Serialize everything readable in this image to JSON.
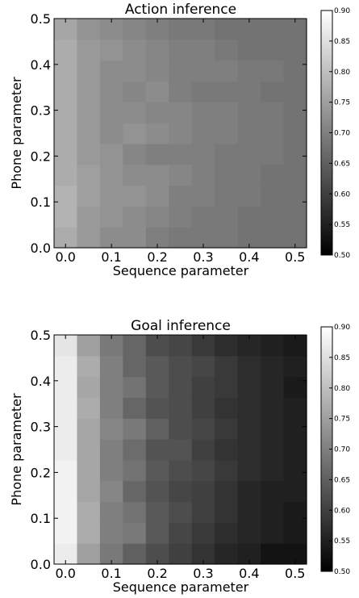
{
  "chart_data": [
    {
      "type": "heatmap",
      "title": "Action inference",
      "xlabel": "Sequence parameter",
      "ylabel": "Phone parameter",
      "x_ticks": [
        "0.0",
        "0.1",
        "0.2",
        "0.3",
        "0.4",
        "0.5"
      ],
      "y_ticks": [
        "0.0",
        "0.1",
        "0.2",
        "0.3",
        "0.4",
        "0.5"
      ],
      "x_range": [
        -0.025,
        0.525
      ],
      "y_range": [
        0.0,
        0.5
      ],
      "x": [
        0.0,
        0.05,
        0.1,
        0.15,
        0.2,
        0.25,
        0.3,
        0.35,
        0.4,
        0.45,
        0.5
      ],
      "y": [
        0.0,
        0.05,
        0.1,
        0.15,
        0.2,
        0.25,
        0.3,
        0.35,
        0.4,
        0.45,
        0.5
      ],
      "colormap": "gray",
      "vmin": 0.5,
      "vmax": 0.9,
      "colorbar_ticks": [
        "0.90",
        "0.85",
        "0.80",
        "0.75",
        "0.70",
        "0.65",
        "0.60",
        "0.55",
        "0.50"
      ],
      "values": [
        [
          0.77,
          0.74,
          0.72,
          0.72,
          0.7,
          0.69,
          0.69,
          0.69,
          0.68,
          0.68,
          0.68
        ],
        [
          0.78,
          0.74,
          0.73,
          0.72,
          0.71,
          0.7,
          0.69,
          0.69,
          0.68,
          0.68,
          0.68
        ],
        [
          0.78,
          0.75,
          0.73,
          0.73,
          0.72,
          0.7,
          0.7,
          0.69,
          0.69,
          0.68,
          0.68
        ],
        [
          0.77,
          0.75,
          0.73,
          0.72,
          0.72,
          0.71,
          0.7,
          0.69,
          0.69,
          0.68,
          0.68
        ],
        [
          0.77,
          0.74,
          0.73,
          0.71,
          0.7,
          0.7,
          0.7,
          0.69,
          0.69,
          0.69,
          0.68
        ],
        [
          0.77,
          0.74,
          0.72,
          0.73,
          0.72,
          0.71,
          0.7,
          0.7,
          0.69,
          0.69,
          0.68
        ],
        [
          0.77,
          0.74,
          0.72,
          0.72,
          0.71,
          0.71,
          0.7,
          0.7,
          0.69,
          0.69,
          0.68
        ],
        [
          0.77,
          0.74,
          0.72,
          0.71,
          0.72,
          0.7,
          0.69,
          0.69,
          0.69,
          0.68,
          0.68
        ],
        [
          0.77,
          0.74,
          0.72,
          0.72,
          0.71,
          0.7,
          0.7,
          0.7,
          0.69,
          0.69,
          0.68
        ],
        [
          0.77,
          0.74,
          0.73,
          0.72,
          0.71,
          0.7,
          0.7,
          0.69,
          0.68,
          0.68,
          0.68
        ],
        [
          0.76,
          0.73,
          0.72,
          0.71,
          0.7,
          0.69,
          0.69,
          0.68,
          0.68,
          0.68,
          0.68
        ]
      ]
    },
    {
      "type": "heatmap",
      "title": "Goal inference",
      "xlabel": "Sequence parameter",
      "ylabel": "Phone parameter",
      "x_ticks": [
        "0.0",
        "0.1",
        "0.2",
        "0.3",
        "0.4",
        "0.5"
      ],
      "y_ticks": [
        "0.0",
        "0.1",
        "0.2",
        "0.3",
        "0.4",
        "0.5"
      ],
      "x_range": [
        -0.025,
        0.525
      ],
      "y_range": [
        0.0,
        0.5
      ],
      "x": [
        0.0,
        0.05,
        0.1,
        0.15,
        0.2,
        0.25,
        0.3,
        0.35,
        0.4,
        0.45,
        0.5
      ],
      "y": [
        0.0,
        0.05,
        0.1,
        0.15,
        0.2,
        0.25,
        0.3,
        0.35,
        0.4,
        0.45,
        0.5
      ],
      "colormap": "gray",
      "vmin": 0.5,
      "vmax": 0.9,
      "colorbar_ticks": [
        "0.90",
        "0.85",
        "0.80",
        "0.75",
        "0.70",
        "0.65",
        "0.60",
        "0.55",
        "0.50"
      ],
      "values": [
        [
          0.87,
          0.75,
          0.69,
          0.65,
          0.62,
          0.6,
          0.58,
          0.56,
          0.55,
          0.53,
          0.53
        ],
        [
          0.88,
          0.77,
          0.7,
          0.69,
          0.64,
          0.61,
          0.59,
          0.57,
          0.56,
          0.55,
          0.54
        ],
        [
          0.88,
          0.77,
          0.7,
          0.68,
          0.64,
          0.62,
          0.6,
          0.58,
          0.56,
          0.55,
          0.54
        ],
        [
          0.88,
          0.76,
          0.71,
          0.66,
          0.63,
          0.61,
          0.6,
          0.58,
          0.56,
          0.55,
          0.55
        ],
        [
          0.88,
          0.76,
          0.7,
          0.68,
          0.64,
          0.62,
          0.61,
          0.59,
          0.57,
          0.56,
          0.55
        ],
        [
          0.87,
          0.76,
          0.7,
          0.67,
          0.63,
          0.63,
          0.6,
          0.58,
          0.57,
          0.56,
          0.55
        ],
        [
          0.87,
          0.76,
          0.71,
          0.69,
          0.65,
          0.62,
          0.61,
          0.59,
          0.57,
          0.56,
          0.55
        ],
        [
          0.87,
          0.77,
          0.7,
          0.66,
          0.63,
          0.62,
          0.6,
          0.58,
          0.57,
          0.56,
          0.55
        ],
        [
          0.87,
          0.76,
          0.7,
          0.68,
          0.64,
          0.62,
          0.6,
          0.59,
          0.57,
          0.56,
          0.54
        ],
        [
          0.87,
          0.77,
          0.7,
          0.66,
          0.64,
          0.62,
          0.61,
          0.59,
          0.57,
          0.56,
          0.55
        ],
        [
          0.86,
          0.75,
          0.69,
          0.66,
          0.62,
          0.61,
          0.59,
          0.57,
          0.56,
          0.55,
          0.54
        ]
      ]
    }
  ]
}
